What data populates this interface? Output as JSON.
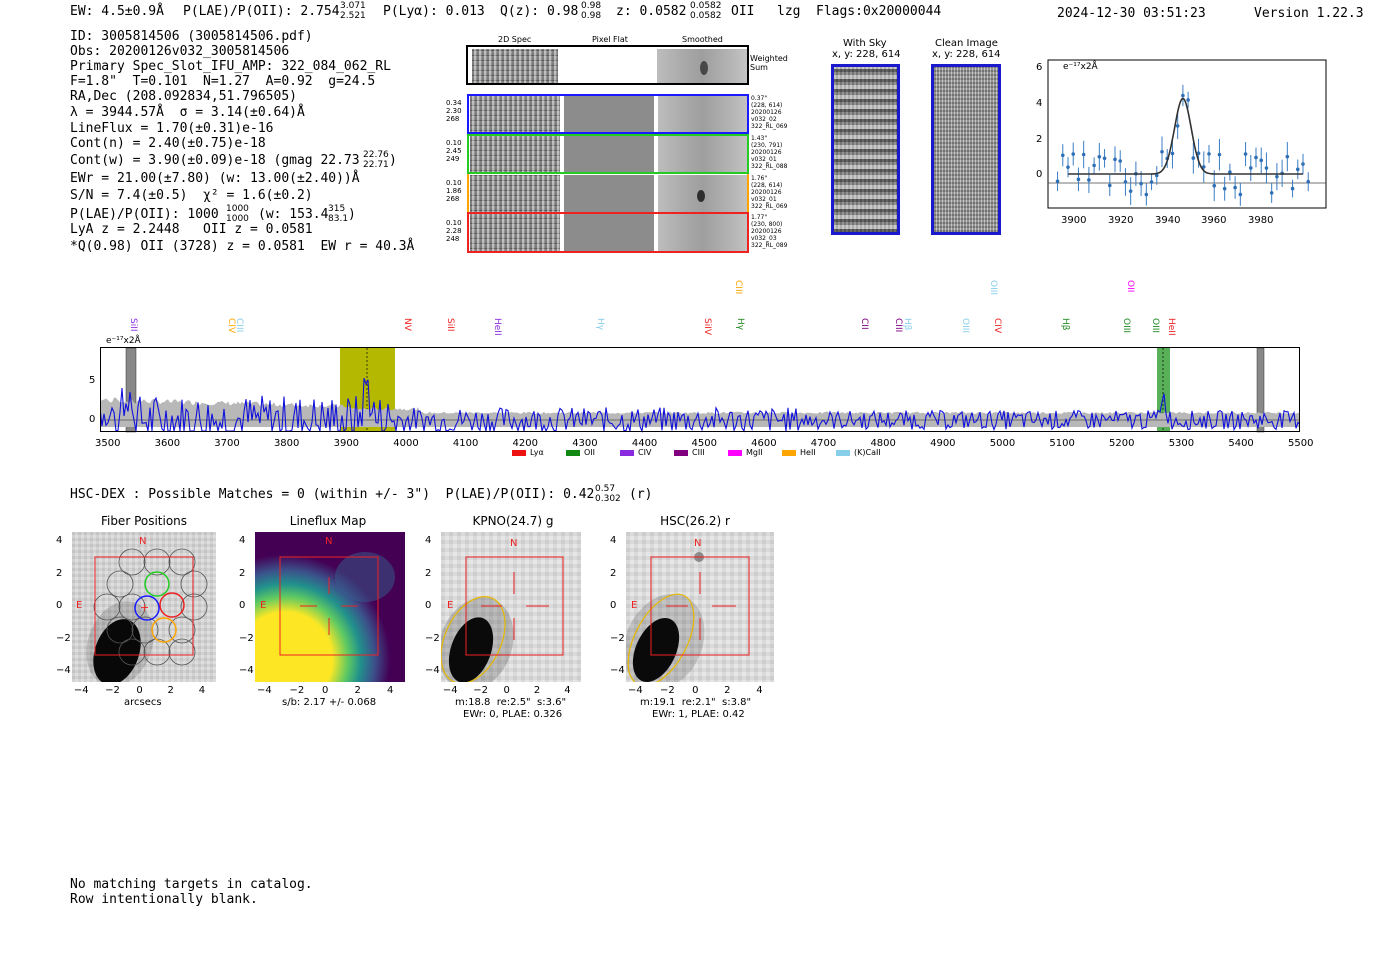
{
  "header": {
    "ew": "EW: 4.5±0.9Å",
    "plae_label": "P(LAE)/P(OII): 2.754",
    "plae_hi": "3.071",
    "plae_lo": "2.521",
    "plya": "P(Lyα): 0.013",
    "qz_label": "Q(z): 0.98",
    "qz_hi": "0.98",
    "qz_lo": "0.98",
    "z_label": "z: 0.0582",
    "z_hi": "0.0582",
    "z_lo": "0.0582",
    "z_line": "OII",
    "lzg": "lzg",
    "flags": "Flags:0x20000044",
    "timestamp": "2024-12-30 03:51:23",
    "version": "Version 1.22.3"
  },
  "info": {
    "id": "ID: 3005814506 (3005814506.pdf)",
    "obs": "Obs: 20200126v032_3005814506",
    "primary": "Primary Spec_Slot_IFU_AMP: 322_084_062_RL",
    "params": "F=1.8\"  T=0.101  N=1.27  A=0.92  g=24.5",
    "radec": "RA,Dec (208.092834,51.796505)",
    "lambda": "λ = 3944.57Å  σ = 3.14(±0.64)Å",
    "lineflux": "LineFlux = 1.70(±0.31)e-16",
    "contn": "Cont(n) = 2.40(±0.75)e-18",
    "contw": "Cont(w) = 3.90(±0.09)e-18 (gmag 22.73",
    "gmag_hi": "22.76",
    "gmag_lo": "22.71",
    "contw_close": ")",
    "ewr": "EWr = 21.00(±7.80) (w: 13.00(±2.40))Å",
    "sn": "S/N = 7.4(±0.5)  χ² = 1.6(±0.2)",
    "plae2": "P(LAE)/P(OII): 1000",
    "plae2_hi": "1000",
    "plae2_lo": "1000",
    "plae2_w": "(w: 153.4",
    "plae2_w_hi": "315",
    "plae2_w_lo": "83.1",
    "plae2_close": ")",
    "lya": "LyA z = 2.2448   OII z = 0.0581",
    "qline": "*Q(0.98) OII (3728) z = 0.0581  EW r = 40.3Å"
  },
  "cutouts_2d": {
    "headers": [
      "2D Spec",
      "Pixel Flat",
      "Smoothed"
    ],
    "weighted_label": "Weighted\nSum",
    "rows": [
      {
        "left": "0.34\n2.30\n268",
        "right": "0.37\"\n(228, 614)\n20200126\nv032_02\n322_RL_069",
        "color": "#1a1aff"
      },
      {
        "left": "0.10\n2.45\n249",
        "right": "1.43\"\n(230, 791)\n20200126\nv032_01\n322_RL_088",
        "color": "#22cc22"
      },
      {
        "left": "0.10\n1.86\n268",
        "right": "1.76\"\n(228, 614)\n20200126\nv032_01\n322_RL_069",
        "color": "#ffa500"
      },
      {
        "left": "0.10\n2.28\n248",
        "right": "1.77\"\n(230, 800)\n20200126\nv032_03\n322_RL_089",
        "color": "#ee2222"
      }
    ]
  },
  "sky_panels": {
    "with_sky_title": "With Sky",
    "with_sky_sub": "x, y: 228, 614",
    "clean_title": "Clean Image",
    "clean_sub": "x, y: 228, 614"
  },
  "zoom_chart": {
    "ylabel": "e⁻¹⁷x2Å",
    "yticks": [
      "6",
      "4",
      "2",
      "0"
    ],
    "xticks": [
      "3900",
      "3920",
      "3940",
      "3960",
      "3980"
    ]
  },
  "full_spectrum": {
    "ylabel": "e⁻¹⁷x2Å",
    "yticks": [
      "5",
      "0"
    ],
    "xticks": [
      "3500",
      "3600",
      "3700",
      "3800",
      "3900",
      "4000",
      "4100",
      "4200",
      "4300",
      "4400",
      "4500",
      "4600",
      "4700",
      "4800",
      "4900",
      "5000",
      "5100",
      "5200",
      "5300",
      "5400",
      "5500"
    ],
    "lines": [
      {
        "label": "SiII",
        "color": "#8a2be2",
        "low": true
      },
      {
        "label": "CIV",
        "color": "#ffa500",
        "low": true
      },
      {
        "label": "CIII",
        "color": "#87ceeb",
        "low": true
      },
      {
        "label": "NV",
        "color": "#ee2222",
        "low": true
      },
      {
        "label": "SiII",
        "color": "#ee2222",
        "low": true
      },
      {
        "label": "HeII",
        "color": "#8a2be2",
        "low": true
      },
      {
        "label": "Hγ",
        "color": "#87ceeb",
        "low": true
      },
      {
        "label": "SiIV",
        "color": "#ee2222",
        "low": true
      },
      {
        "label": "CIII",
        "color": "#ffa500",
        "low": false
      },
      {
        "label": "Hγ",
        "color": "#228b22",
        "low": true
      },
      {
        "label": "CII",
        "color": "#800080",
        "low": true
      },
      {
        "label": "CIII",
        "color": "#800080",
        "low": true
      },
      {
        "label": "Hβ",
        "color": "#87ceeb",
        "low": true
      },
      {
        "label": "OIII",
        "color": "#87ceeb",
        "low": true
      },
      {
        "label": "CIV",
        "color": "#ee2222",
        "low": true
      },
      {
        "label": "OIII",
        "color": "#87ceeb",
        "low": false
      },
      {
        "label": "Hβ",
        "color": "#228b22",
        "low": true
      },
      {
        "label": "OII",
        "color": "#ff00ff",
        "low": false
      },
      {
        "label": "OIII",
        "color": "#228b22",
        "low": true
      },
      {
        "label": "OIII",
        "color": "#228b22",
        "low": true
      },
      {
        "label": "HeII",
        "color": "#ee2222",
        "low": true
      }
    ],
    "legend": [
      {
        "label": "Lyα",
        "color": "#ee1111"
      },
      {
        "label": "OII",
        "color": "#118811"
      },
      {
        "label": "CIV",
        "color": "#8a2be2"
      },
      {
        "label": "CIII",
        "color": "#800080"
      },
      {
        "label": "MgII",
        "color": "#ff00ff"
      },
      {
        "label": "HeII",
        "color": "#ffa500"
      },
      {
        "label": "(K)CaII",
        "color": "#87ceeb"
      }
    ]
  },
  "hsc": {
    "line_a": "HSC-DEX : Possible Matches = 0 (within +/- 3\")  P(LAE)/P(OII): 0.42",
    "hi": "0.57",
    "lo": "0.302",
    "line_b": "(r)"
  },
  "imaging": {
    "panels": [
      {
        "title": "Fiber Positions",
        "caption1": "arcsecs",
        "caption2": "",
        "caption3": ""
      },
      {
        "title": "Lineflux Map",
        "caption1": "s/b: 2.17 +/- 0.068",
        "caption2": "",
        "caption3": ""
      },
      {
        "title": "KPNO(24.7) g",
        "caption1": "m:18.8  re:2.5\"  s:3.6\"",
        "caption2": "EWr: 0, PLAE: 0.326",
        "caption3": ""
      },
      {
        "title": "HSC(26.2) r",
        "caption1": "m:19.1  re:2.1\"  s:3.8\"",
        "caption2": "EWr: 1, PLAE: 0.42",
        "caption3": ""
      }
    ],
    "yticks": [
      "4",
      "2",
      "0",
      "−2",
      "−4"
    ],
    "xticks": [
      "−4",
      "−2",
      "0",
      "2",
      "4"
    ],
    "north": "N",
    "east": "E"
  },
  "footer": {
    "line1": "No matching targets in catalog.",
    "line2": "Row intentionally blank."
  }
}
